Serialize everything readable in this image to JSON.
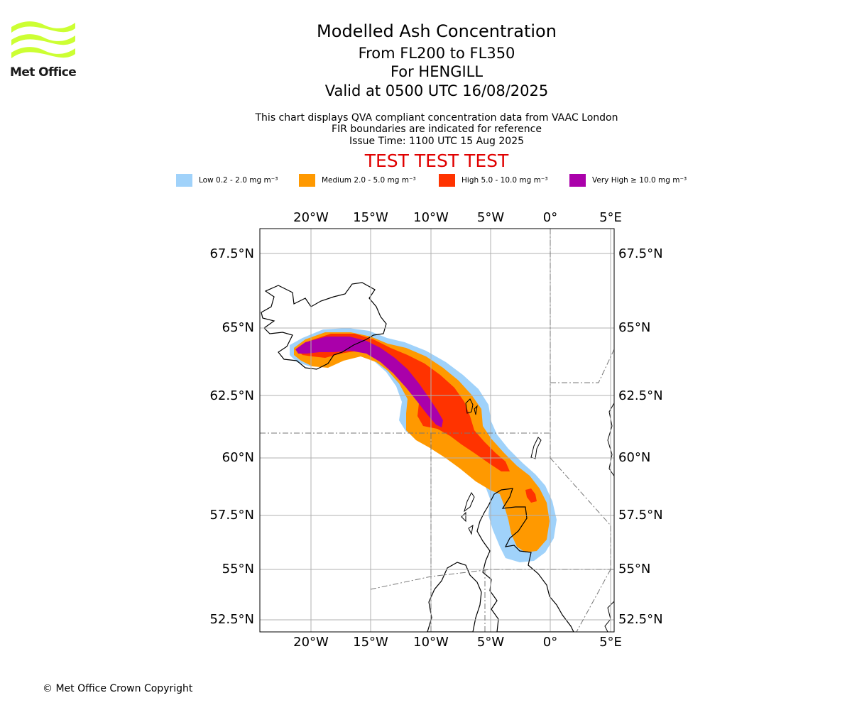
{
  "logo": {
    "text": "Met Office",
    "color": "#ccff33"
  },
  "header": {
    "title": "Modelled Ash Concentration",
    "levels": "From FL200 to FL350",
    "location": "For HENGILL",
    "valid": "Valid at 0500 UTC 16/08/2025",
    "note1": "This chart displays QVA compliant concentration data from VAAC London",
    "note2": "FIR boundaries are indicated for reference",
    "issue": "Issue Time: 1100 UTC 15 Aug 2025",
    "test": "TEST TEST TEST"
  },
  "legend": [
    {
      "label": "Low 0.2 - 2.0 mg m⁻³",
      "color": "#a0d2fa"
    },
    {
      "label": "Medium 2.0 - 5.0 mg m⁻³",
      "color": "#ff9900"
    },
    {
      "label": "High 5.0 - 10.0 mg m⁻³",
      "color": "#ff3300"
    },
    {
      "label": "Very High ≥ 10.0 mg m⁻³",
      "color": "#aa00aa"
    }
  ],
  "map": {
    "lon_labels": [
      "20°W",
      "15°W",
      "10°W",
      "5°W",
      "0°",
      "5°E"
    ],
    "lat_labels": [
      "67.5°N",
      "65°N",
      "62.5°N",
      "60°N",
      "57.5°N",
      "55°N",
      "52.5°N"
    ]
  },
  "footer": {
    "copyright": "© Met Office Crown Copyright"
  }
}
